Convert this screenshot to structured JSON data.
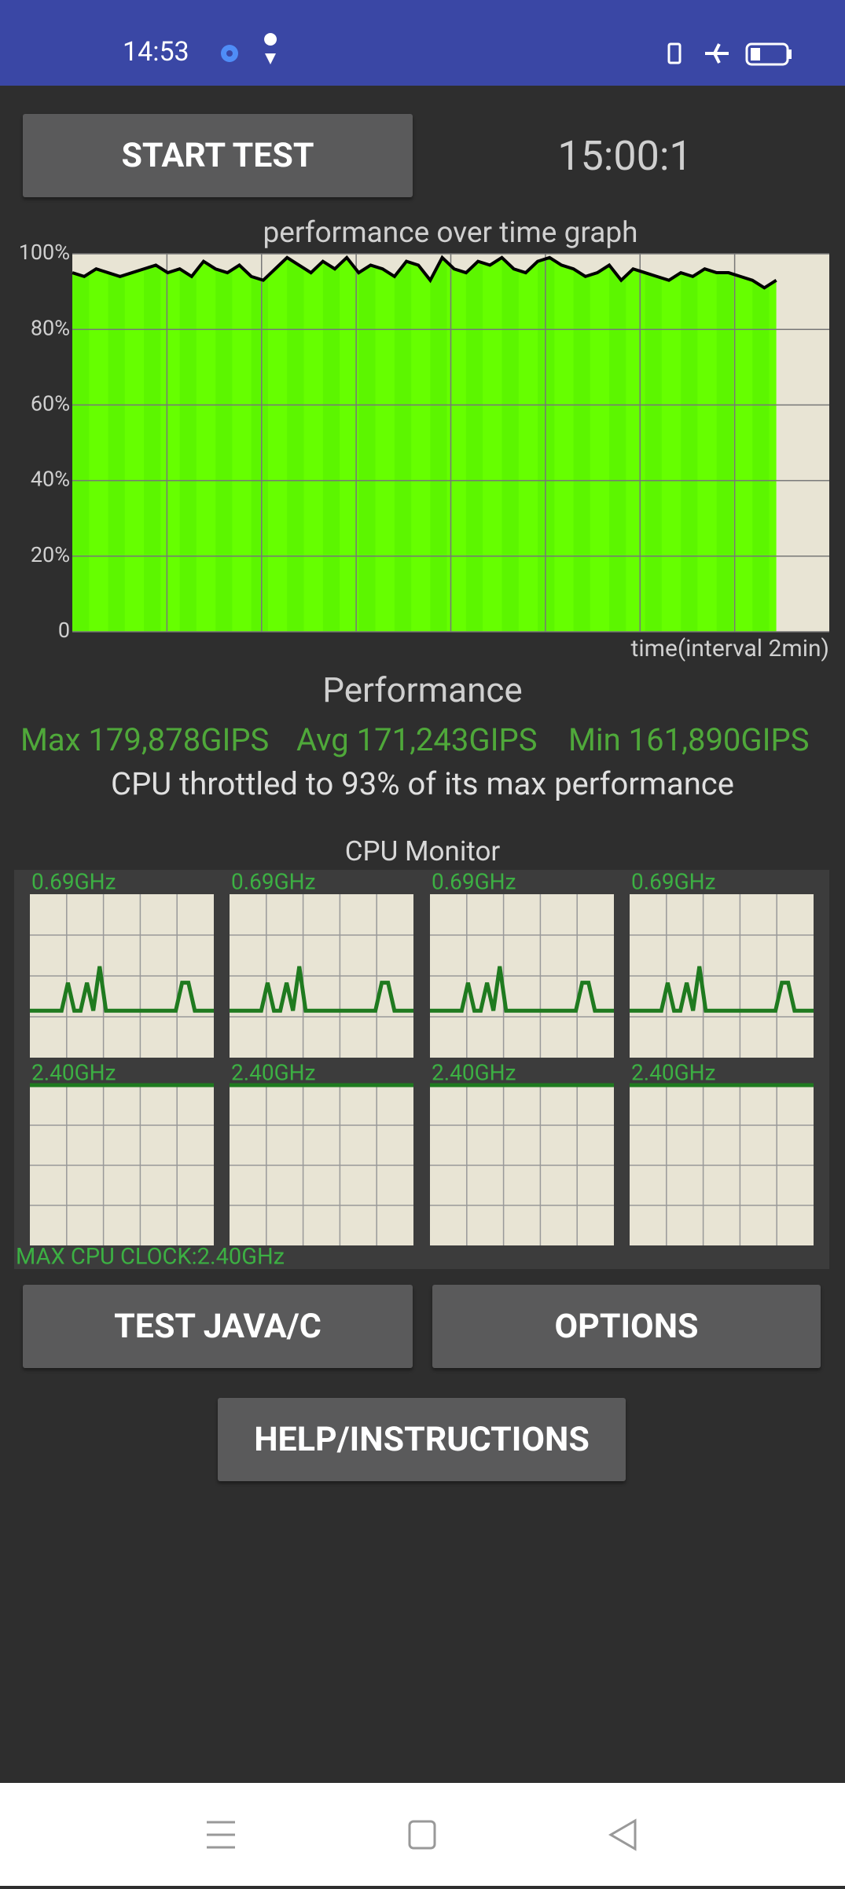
{
  "status_bar": {
    "time": "14:53"
  },
  "buttons": {
    "start_test": "START TEST",
    "test_java_c": "TEST JAVA/C",
    "options": "OPTIONS",
    "help": "HELP/INSTRUCTIONS"
  },
  "timer": "15:00:1",
  "chart_data": {
    "type": "area",
    "title": "performance over time graph",
    "x_label": "time(interval 2min)",
    "values": [
      95,
      94,
      96,
      95,
      94,
      95,
      96,
      97,
      95,
      96,
      94,
      98,
      96,
      95,
      97,
      94,
      93,
      96,
      99,
      97,
      95,
      98,
      96,
      99,
      95,
      97,
      96,
      94,
      98,
      97,
      93,
      99,
      96,
      95,
      98,
      97,
      99,
      96,
      95,
      98,
      99,
      97,
      96,
      94,
      95,
      97,
      93,
      96,
      95,
      94,
      93,
      95,
      94,
      96,
      95,
      95,
      94,
      93,
      91,
      93
    ],
    "color": "#66ff00",
    "line_color": "#000000",
    "ylim": [
      0,
      100
    ],
    "yticks": [
      0,
      {
        "value": 20,
        "label": "20%"
      },
      {
        "value": 40,
        "label": "40%"
      },
      {
        "value": 60,
        "label": "60%"
      },
      {
        "value": 80,
        "label": "80%"
      },
      {
        "value": 100,
        "label": "100%"
      }
    ],
    "grid": true
  },
  "performance": {
    "heading": "Performance",
    "max": "Max 179,878GIPS",
    "avg": "Avg 171,243GIPS",
    "min": "Min 161,890GIPS",
    "throttle": "CPU throttled to 93% of its max performance"
  },
  "cpu_monitor": {
    "title": "CPU Monitor",
    "max_clock": "MAX CPU CLOCK:2.40GHz",
    "ylim": [
      0,
      2.4
    ],
    "cores": [
      {
        "label": "0.69GHz",
        "trace": [
          0.69,
          0.69,
          0.69,
          0.69,
          0.69,
          0.69,
          1.1,
          0.69,
          0.69,
          1.1,
          0.69,
          1.34,
          0.69,
          0.69,
          0.69,
          0.69,
          0.69,
          0.69,
          0.69,
          0.69,
          0.69,
          0.69,
          0.69,
          0.69,
          1.1,
          1.1,
          0.69,
          0.69,
          0.69,
          0.69
        ]
      },
      {
        "label": "0.69GHz",
        "trace": [
          0.69,
          0.69,
          0.69,
          0.69,
          0.69,
          0.69,
          1.1,
          0.69,
          0.69,
          1.1,
          0.69,
          1.34,
          0.69,
          0.69,
          0.69,
          0.69,
          0.69,
          0.69,
          0.69,
          0.69,
          0.69,
          0.69,
          0.69,
          0.69,
          1.1,
          1.1,
          0.69,
          0.69,
          0.69,
          0.69
        ]
      },
      {
        "label": "0.69GHz",
        "trace": [
          0.69,
          0.69,
          0.69,
          0.69,
          0.69,
          0.69,
          1.1,
          0.69,
          0.69,
          1.1,
          0.69,
          1.34,
          0.69,
          0.69,
          0.69,
          0.69,
          0.69,
          0.69,
          0.69,
          0.69,
          0.69,
          0.69,
          0.69,
          0.69,
          1.1,
          1.1,
          0.69,
          0.69,
          0.69,
          0.69
        ]
      },
      {
        "label": "0.69GHz",
        "trace": [
          0.69,
          0.69,
          0.69,
          0.69,
          0.69,
          0.69,
          1.1,
          0.69,
          0.69,
          1.1,
          0.69,
          1.34,
          0.69,
          0.69,
          0.69,
          0.69,
          0.69,
          0.69,
          0.69,
          0.69,
          0.69,
          0.69,
          0.69,
          0.69,
          1.1,
          1.1,
          0.69,
          0.69,
          0.69,
          0.69
        ]
      },
      {
        "label": "2.40GHz",
        "trace": [
          2.4,
          2.4,
          2.4,
          2.4,
          2.4,
          2.4,
          2.4,
          2.4,
          2.4,
          2.4
        ]
      },
      {
        "label": "2.40GHz",
        "trace": [
          2.4,
          2.4,
          2.4,
          2.4,
          2.4,
          2.4,
          2.4,
          2.4,
          2.4,
          2.4
        ]
      },
      {
        "label": "2.40GHz",
        "trace": [
          2.4,
          2.4,
          2.4,
          2.4,
          2.4,
          2.4,
          2.4,
          2.4,
          2.4,
          2.4
        ]
      },
      {
        "label": "2.40GHz",
        "trace": [
          2.4,
          2.4,
          2.4,
          2.4,
          2.4,
          2.4,
          2.4,
          2.4,
          2.4,
          2.4
        ]
      }
    ]
  }
}
